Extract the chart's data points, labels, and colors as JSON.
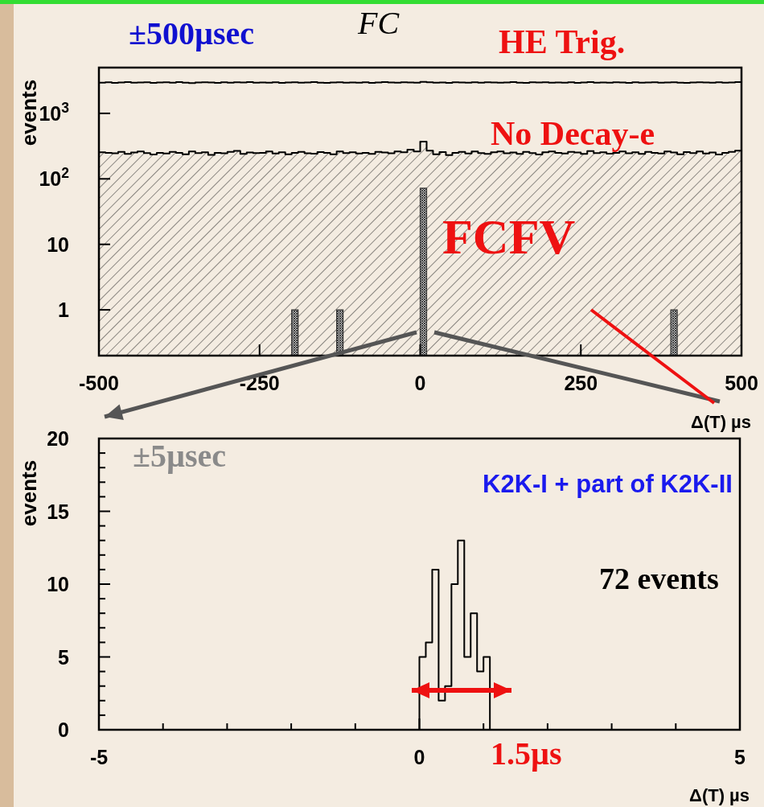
{
  "chart_data": [
    {
      "type": "histogram",
      "title": "FC",
      "xlabel": "Δ(T) µs",
      "ylabel": "events",
      "log": true,
      "bins": [
        -500,
        -490,
        -480,
        -470,
        -460,
        -450,
        -440,
        -430,
        -420,
        -410,
        -400,
        -390,
        -380,
        -370,
        -360,
        -350,
        -340,
        -330,
        -320,
        -310,
        -300,
        -290,
        -280,
        -270,
        -260,
        -250,
        -240,
        -230,
        -220,
        -210,
        -200,
        -190,
        -180,
        -170,
        -160,
        -150,
        -140,
        -130,
        -120,
        -110,
        -100,
        -90,
        -80,
        -70,
        -60,
        -50,
        -40,
        -30,
        -20,
        -10,
        0,
        10,
        20,
        30,
        40,
        50,
        60,
        70,
        80,
        90,
        100,
        110,
        120,
        130,
        140,
        150,
        160,
        170,
        180,
        190,
        200,
        210,
        220,
        230,
        240,
        250,
        260,
        270,
        280,
        290,
        300,
        310,
        320,
        330,
        340,
        350,
        360,
        370,
        380,
        390,
        400,
        410,
        420,
        430,
        440,
        450,
        460,
        470,
        480,
        490,
        500
      ],
      "series": [
        {
          "name": "HE Trig.",
          "color": "#000000",
          "values": [
            2950,
            2980,
            2930,
            2960,
            3000,
            2940,
            2970,
            2990,
            2920,
            2960,
            2980,
            2950,
            3010,
            2940,
            2900,
            2960,
            2990,
            2970,
            2930,
            2980,
            2950,
            2990,
            2960,
            3010,
            2940,
            2970,
            2950,
            2990,
            2930,
            2960,
            2980,
            2940,
            2970,
            3000,
            2950,
            2920,
            2960,
            2990,
            2940,
            2970,
            2950,
            2980,
            2930,
            2970,
            3010,
            2960,
            2940,
            2990,
            2970,
            2950,
            3020,
            2980,
            2950,
            2970,
            2930,
            2990,
            2960,
            2940,
            2980,
            2950,
            2990,
            2970,
            2940,
            2960,
            3000,
            2950,
            2930,
            2980,
            2960,
            2990,
            2940,
            2970,
            2950,
            2980,
            2930,
            2960,
            3000,
            2950,
            2970,
            2940,
            2990,
            2960,
            2930,
            2980,
            2950,
            2970,
            2990,
            2940,
            2960,
            2980,
            2950,
            2930,
            2970,
            2990,
            2960,
            2940,
            2980,
            2950,
            2970,
            3000
          ]
        },
        {
          "name": "No Decay-e",
          "color": "#000000",
          "values": [
            255,
            250,
            245,
            258,
            240,
            252,
            262,
            248,
            236,
            250,
            244,
            258,
            250,
            238,
            262,
            248,
            255,
            232,
            250,
            245,
            258,
            268,
            240,
            252,
            247,
            250,
            262,
            244,
            255,
            238,
            250,
            258,
            246,
            242,
            256,
            250,
            238,
            262,
            248,
            255,
            244,
            250,
            240,
            258,
            252,
            246,
            262,
            255,
            280,
            262,
            370,
            270,
            238,
            256,
            230,
            250,
            258,
            244,
            262,
            248,
            240,
            255,
            262,
            246,
            252,
            240,
            258,
            248,
            236,
            255,
            262,
            250,
            244,
            258,
            252,
            240,
            265,
            248,
            255,
            242,
            250,
            262,
            246,
            255,
            240,
            258,
            250,
            244,
            262,
            252,
            238,
            256,
            248,
            262,
            244,
            252,
            236,
            250,
            258,
            270
          ]
        },
        {
          "name": "FCFV",
          "color": "#333333",
          "values": [
            null,
            null,
            null,
            null,
            null,
            null,
            null,
            null,
            null,
            null,
            null,
            null,
            null,
            null,
            null,
            null,
            null,
            null,
            null,
            null,
            null,
            null,
            null,
            null,
            null,
            null,
            null,
            null,
            null,
            null,
            1,
            null,
            null,
            null,
            null,
            null,
            null,
            1,
            null,
            null,
            null,
            null,
            null,
            null,
            null,
            null,
            null,
            null,
            null,
            null,
            72,
            null,
            null,
            null,
            null,
            null,
            null,
            null,
            null,
            null,
            null,
            null,
            null,
            null,
            null,
            null,
            null,
            null,
            null,
            null,
            null,
            null,
            null,
            null,
            null,
            null,
            null,
            null,
            null,
            null,
            null,
            null,
            null,
            null,
            null,
            null,
            null,
            null,
            null,
            1,
            null,
            null,
            null,
            null,
            null,
            null,
            null,
            null,
            null,
            null
          ]
        }
      ],
      "xlim": [
        -500,
        500
      ],
      "xticks": [
        -500,
        -250,
        0,
        250,
        500
      ],
      "ylim": [
        0.2,
        5000
      ],
      "yticks": [
        1,
        10,
        {
          "value": 100,
          "label": "10$^{2}$"
        },
        {
          "value": 1000,
          "label": "10$^{3}$"
        }
      ],
      "annotations": [
        "±500µsec"
      ]
    },
    {
      "type": "histogram",
      "xlabel": "Δ(T) µs",
      "ylabel": "events",
      "bins": [
        0,
        0.1,
        0.2,
        0.3,
        0.4,
        0.5,
        0.6,
        0.7,
        0.8,
        0.9,
        1.0,
        1.1
      ],
      "values": [
        5,
        6,
        11,
        2,
        3,
        10,
        13,
        5,
        8,
        4,
        5
      ],
      "color": "#000000",
      "xlim": [
        -5,
        5
      ],
      "xticks": [
        -5,
        {
          "value": -4,
          "label": null
        },
        {
          "value": -3,
          "label": null
        },
        {
          "value": -2,
          "label": null
        },
        {
          "value": -1,
          "label": null
        },
        0,
        {
          "value": 1,
          "label": null
        },
        {
          "value": 2,
          "label": null
        },
        {
          "value": 3,
          "label": null
        },
        {
          "value": 4,
          "label": null
        },
        5
      ],
      "ylim": [
        0,
        20
      ],
      "yticks": [
        0,
        {
          "value": 1,
          "label": null
        },
        {
          "value": 2,
          "label": null
        },
        {
          "value": 3,
          "label": null
        },
        {
          "value": 4,
          "label": null
        },
        5,
        {
          "value": 6,
          "label": null
        },
        {
          "value": 7,
          "label": null
        },
        {
          "value": 8,
          "label": null
        },
        {
          "value": 9,
          "label": null
        },
        10,
        {
          "value": 11,
          "label": null
        },
        {
          "value": 12,
          "label": null
        },
        {
          "value": 13,
          "label": null
        },
        {
          "value": 14,
          "label": null
        },
        15,
        {
          "value": 16,
          "label": null
        },
        {
          "value": 17,
          "label": null
        },
        {
          "value": 18,
          "label": null
        },
        {
          "value": 19,
          "label": null
        },
        20
      ],
      "annotations": [
        "±5µsec",
        "K2K-I + part of K2K-II",
        "72 events",
        "1.5µs"
      ]
    }
  ]
}
